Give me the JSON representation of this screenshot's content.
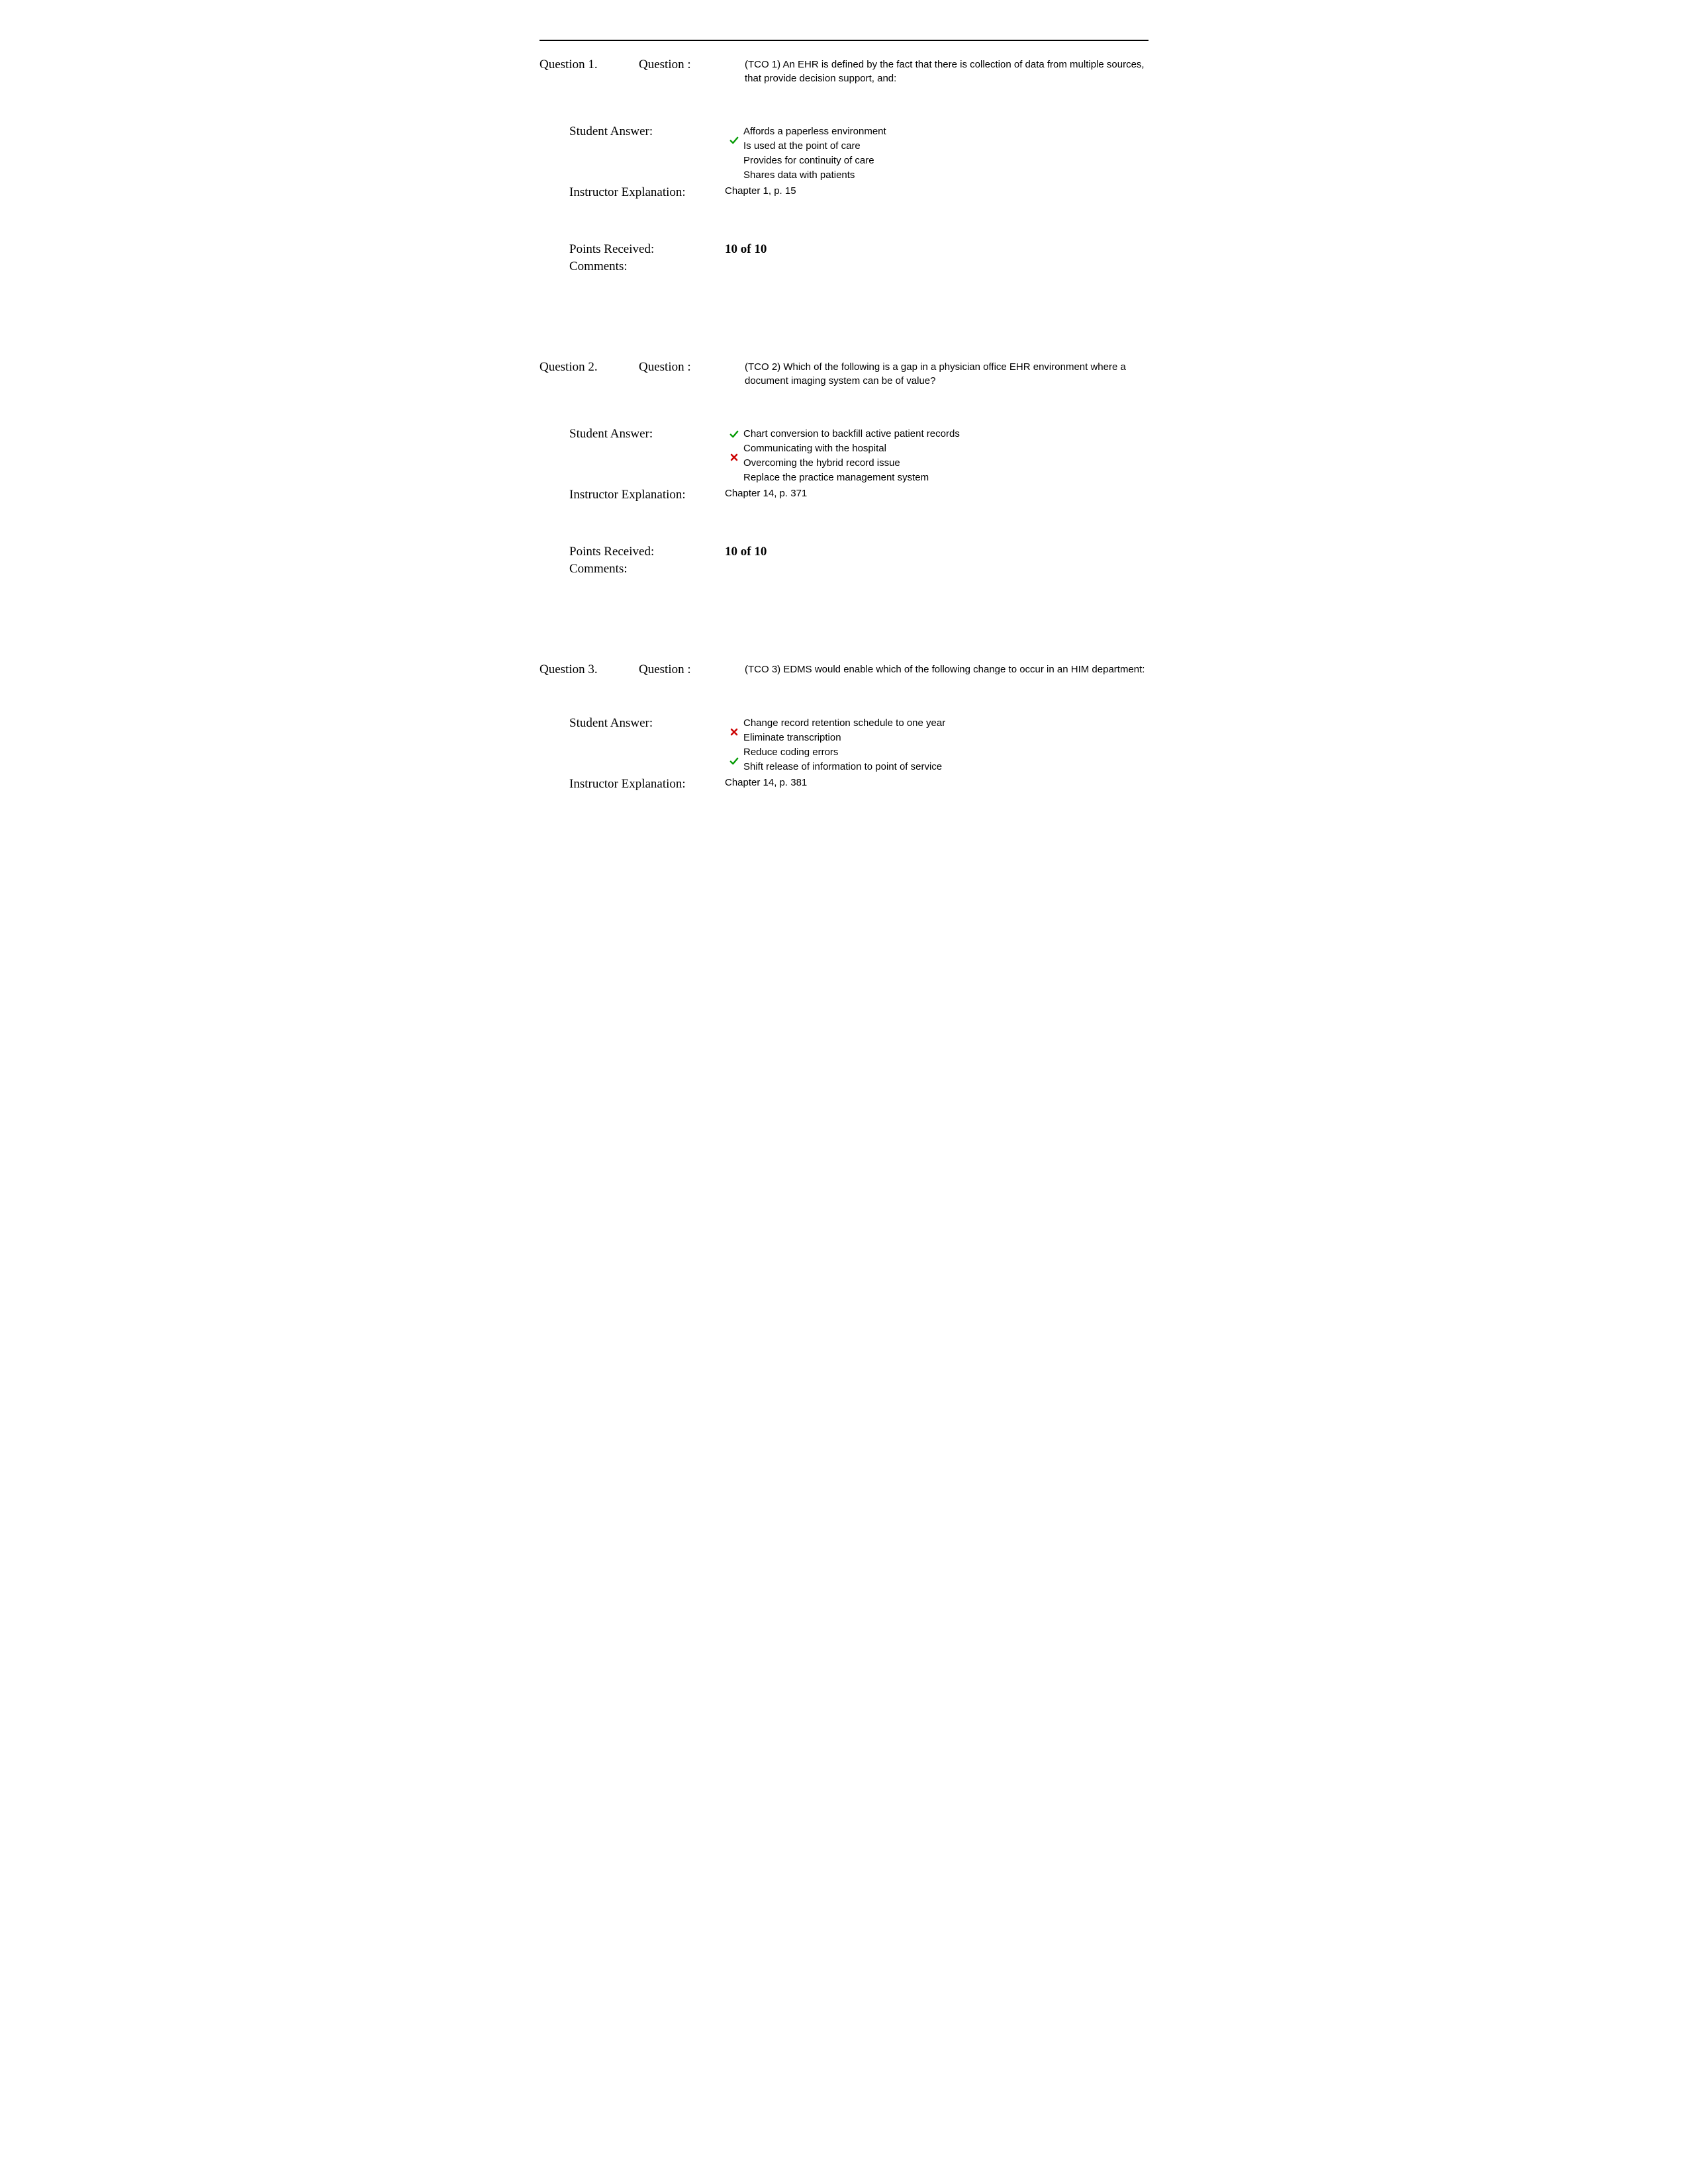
{
  "colors": {
    "check": "#009900",
    "cross": "#cc0000",
    "rule": "#000000",
    "text": "#000000",
    "background": "#ffffff"
  },
  "labels": {
    "question_label": "Question :",
    "student_answer": "Student Answer:",
    "instructor_explanation": "Instructor Explanation:",
    "points_received": "Points Received:",
    "comments": "Comments:"
  },
  "questions": [
    {
      "number_label": "Question 1.",
      "prompt": "(TCO 1) An EHR is defined by the fact that there is collection of data from multiple sources, that provide decision support, and:",
      "answers": [
        {
          "text": "Affords a paperless environment",
          "mark": "none"
        },
        {
          "text": "Is used at the point of care",
          "mark": "check"
        },
        {
          "text": "Provides for continuity of care",
          "mark": "none"
        },
        {
          "text": "Shares data with patients",
          "mark": "none"
        }
      ],
      "icon_offset_rows": 1,
      "instructor_explanation": "Chapter 1, p. 15",
      "points": "10 of 10",
      "comments": ""
    },
    {
      "number_label": "Question 2.",
      "prompt": "(TCO 2) Which of the following is a gap in a physician office EHR environment where a document imaging system can be of value?",
      "answers": [
        {
          "text": "Chart conversion to backfill active patient records",
          "mark": "check"
        },
        {
          "text": "Communicating with the hospital",
          "mark": "none"
        },
        {
          "text": "Overcoming the hybrid record issue",
          "mark": "cross"
        },
        {
          "text": "Replace the practice management system",
          "mark": "none"
        }
      ],
      "icon_offset_rows": 0,
      "instructor_explanation": "Chapter 14, p. 371",
      "points": "10 of 10",
      "comments": ""
    },
    {
      "number_label": "Question 3.",
      "prompt": "(TCO 3) EDMS would enable which of the following change to occur in an HIM department:",
      "answers": [
        {
          "text": "Change record retention schedule to one year",
          "mark": "none"
        },
        {
          "text": "Eliminate transcription",
          "mark": "cross"
        },
        {
          "text": "Reduce coding errors",
          "mark": "none"
        },
        {
          "text": "Shift release of information to point of service",
          "mark": "check"
        }
      ],
      "icon_offset_rows": 0,
      "instructor_explanation": "Chapter 14, p. 381",
      "points": "",
      "comments": ""
    }
  ]
}
